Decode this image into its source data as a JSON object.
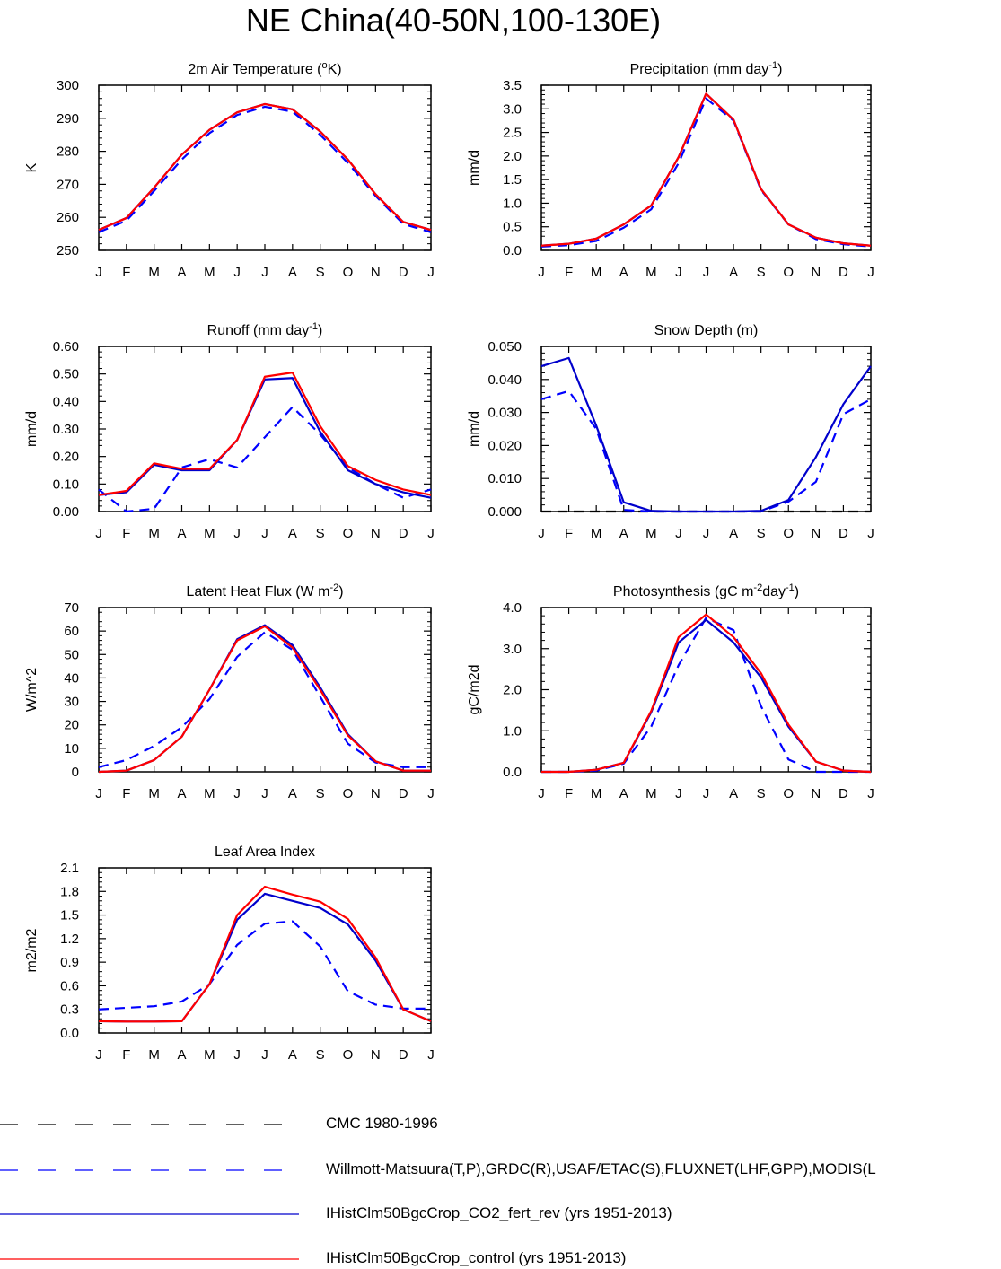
{
  "figure": {
    "title": "NE China(40-50N,100-130E)"
  },
  "colors": {
    "cmc": "#000000",
    "obs": "#0000ff",
    "co2_fert_rev": "#0000cc",
    "control": "#ff0000"
  },
  "legend": [
    {
      "label": "CMC 1980-1996",
      "color": "#000000",
      "style": "dashed"
    },
    {
      "label": "Willmott-Matsuura(T,P),GRDC(R),USAF/ETAC(S),FLUXNET(LHF,GPP),MODIS(L",
      "color": "#0000ff",
      "style": "dashed"
    },
    {
      "label": "IHistClm50BgcCrop_CO2_fert_rev (yrs 1951-2013)",
      "color": "#0000cc",
      "style": "solid"
    },
    {
      "label": "IHistClm50BgcCrop_control (yrs 1951-2013)",
      "color": "#ff0000",
      "style": "solid"
    }
  ],
  "chart_data": [
    {
      "type": "line",
      "title": "2m Air Temperature (",
      "title_sup": "o",
      "title_after": "K)",
      "ylabel": "K",
      "categories": [
        "J",
        "F",
        "M",
        "A",
        "M",
        "J",
        "J",
        "A",
        "S",
        "O",
        "N",
        "D",
        "J"
      ],
      "ylim": [
        250,
        300
      ],
      "yticks": [
        "250",
        "260",
        "270",
        "280",
        "290",
        "300"
      ],
      "ytick_values": [
        250,
        260,
        270,
        280,
        290,
        300
      ],
      "series": [
        {
          "key": "obs",
          "values": [
            255.5,
            259.0,
            268.0,
            277.5,
            285.5,
            291.0,
            293.5,
            292.0,
            285.0,
            276.5,
            266.5,
            258.0,
            255.5
          ]
        },
        {
          "key": "co2_fert_rev",
          "values": [
            256.2,
            259.8,
            269.0,
            279.0,
            286.5,
            291.8,
            294.3,
            292.7,
            286.0,
            277.5,
            267.0,
            258.6,
            256.2
          ]
        },
        {
          "key": "control",
          "values": [
            256.2,
            259.8,
            269.0,
            279.0,
            286.5,
            291.8,
            294.3,
            292.7,
            286.0,
            277.5,
            267.0,
            258.6,
            256.2
          ]
        }
      ]
    },
    {
      "type": "line",
      "title": "Precipitation (mm day",
      "title_sup": "-1",
      "title_after": ")",
      "ylabel": "mm/d",
      "categories": [
        "J",
        "F",
        "M",
        "A",
        "M",
        "J",
        "J",
        "A",
        "S",
        "O",
        "N",
        "D",
        "J"
      ],
      "ylim": [
        0,
        3.5
      ],
      "yticks": [
        "0.0",
        "0.5",
        "1.0",
        "1.5",
        "2.0",
        "2.5",
        "3.0",
        "3.5"
      ],
      "ytick_values": [
        0,
        0.5,
        1.0,
        1.5,
        2.0,
        2.5,
        3.0,
        3.5
      ],
      "series": [
        {
          "key": "obs",
          "values": [
            0.08,
            0.11,
            0.2,
            0.48,
            0.87,
            1.85,
            3.22,
            2.75,
            1.28,
            0.55,
            0.24,
            0.13,
            0.08
          ]
        },
        {
          "key": "co2_fert_rev",
          "values": [
            0.1,
            0.14,
            0.25,
            0.55,
            0.95,
            1.98,
            3.32,
            2.77,
            1.3,
            0.55,
            0.27,
            0.15,
            0.1
          ]
        },
        {
          "key": "control",
          "values": [
            0.1,
            0.14,
            0.25,
            0.55,
            0.95,
            1.98,
            3.32,
            2.77,
            1.3,
            0.55,
            0.27,
            0.15,
            0.1
          ]
        }
      ]
    },
    {
      "type": "line",
      "title": "Runoff (mm day",
      "title_sup": "-1",
      "title_after": ")",
      "ylabel": "mm/d",
      "categories": [
        "J",
        "F",
        "M",
        "A",
        "M",
        "J",
        "J",
        "A",
        "S",
        "O",
        "N",
        "D",
        "J"
      ],
      "ylim": [
        0,
        0.6
      ],
      "yticks": [
        "0.00",
        "0.10",
        "0.20",
        "0.30",
        "0.40",
        "0.50",
        "0.60"
      ],
      "ytick_values": [
        0,
        0.1,
        0.2,
        0.3,
        0.4,
        0.5,
        0.6
      ],
      "series": [
        {
          "key": "obs",
          "values": [
            0.08,
            0.0,
            0.01,
            0.16,
            0.19,
            0.16,
            0.27,
            0.38,
            0.28,
            0.16,
            0.1,
            0.05,
            0.08
          ]
        },
        {
          "key": "co2_fert_rev",
          "values": [
            0.06,
            0.07,
            0.17,
            0.15,
            0.15,
            0.26,
            0.48,
            0.485,
            0.29,
            0.15,
            0.1,
            0.07,
            0.05
          ]
        },
        {
          "key": "control",
          "values": [
            0.06,
            0.075,
            0.175,
            0.155,
            0.155,
            0.26,
            0.49,
            0.505,
            0.31,
            0.165,
            0.115,
            0.08,
            0.06
          ]
        }
      ]
    },
    {
      "type": "line",
      "title": "Snow Depth (m)",
      "title_sup": "",
      "title_after": "",
      "ylabel": "mm/d",
      "categories": [
        "J",
        "F",
        "M",
        "A",
        "M",
        "J",
        "J",
        "A",
        "S",
        "O",
        "N",
        "D",
        "J"
      ],
      "ylim": [
        0,
        0.05
      ],
      "yticks": [
        "0.000",
        "0.010",
        "0.020",
        "0.030",
        "0.040",
        "0.050"
      ],
      "ytick_values": [
        0,
        0.01,
        0.02,
        0.03,
        0.04,
        0.05
      ],
      "series": [
        {
          "key": "cmc",
          "values": [
            0,
            0,
            0,
            0,
            0,
            0,
            0,
            0,
            0,
            0,
            0,
            0,
            0
          ]
        },
        {
          "key": "obs",
          "values": [
            0.034,
            0.0365,
            0.025,
            0.0005,
            0,
            0,
            0,
            0,
            0,
            0.003,
            0.009,
            0.0295,
            0.034
          ]
        },
        {
          "key": "co2_fert_rev",
          "values": [
            0.044,
            0.0465,
            0.026,
            0.0028,
            0.0002,
            0,
            0,
            0,
            0.0002,
            0.0035,
            0.0165,
            0.0325,
            0.044
          ]
        }
      ]
    },
    {
      "type": "line",
      "title": "Latent Heat Flux (W m",
      "title_sup": "-2",
      "title_after": ")",
      "ylabel": "W/m^2",
      "categories": [
        "J",
        "F",
        "M",
        "A",
        "M",
        "J",
        "J",
        "A",
        "S",
        "O",
        "N",
        "D",
        "J"
      ],
      "ylim": [
        0,
        70
      ],
      "yticks": [
        "0",
        "10",
        "20",
        "30",
        "40",
        "50",
        "60",
        "70"
      ],
      "ytick_values": [
        0,
        10,
        20,
        30,
        40,
        50,
        60,
        70
      ],
      "series": [
        {
          "key": "obs",
          "values": [
            2,
            5,
            11,
            19,
            31,
            49,
            59.5,
            52,
            32,
            12,
            4,
            2,
            2
          ]
        },
        {
          "key": "co2_fert_rev",
          "values": [
            0,
            0.5,
            5,
            15,
            35,
            56.5,
            62.5,
            54,
            36,
            16,
            4.5,
            0.5,
            0.5
          ]
        },
        {
          "key": "control",
          "values": [
            0,
            0.5,
            5,
            15,
            35,
            56,
            62,
            53,
            35,
            15.5,
            4.5,
            0.5,
            0.5
          ]
        }
      ]
    },
    {
      "type": "line",
      "title": "Photosynthesis (gC m",
      "title_sup": "-2",
      "title_after": "day",
      "title_sup2": "-1",
      "title_after2": ")",
      "ylabel": "gC/m2d",
      "categories": [
        "J",
        "F",
        "M",
        "A",
        "M",
        "J",
        "J",
        "A",
        "S",
        "O",
        "N",
        "D",
        "J"
      ],
      "ylim": [
        0,
        4.0
      ],
      "yticks": [
        "0.0",
        "1.0",
        "2.0",
        "3.0",
        "4.0"
      ],
      "ytick_values": [
        0,
        1,
        2,
        3,
        4
      ],
      "series": [
        {
          "key": "obs",
          "values": [
            0.0,
            0.0,
            0.03,
            0.2,
            1.1,
            2.6,
            3.75,
            3.45,
            1.6,
            0.3,
            0.0,
            0.0,
            0.0
          ]
        },
        {
          "key": "co2_fert_rev",
          "values": [
            0.0,
            0.0,
            0.05,
            0.22,
            1.45,
            3.15,
            3.7,
            3.15,
            2.3,
            1.1,
            0.25,
            0.03,
            0.0
          ]
        },
        {
          "key": "control",
          "values": [
            0.0,
            0.0,
            0.05,
            0.22,
            1.48,
            3.28,
            3.83,
            3.28,
            2.4,
            1.15,
            0.25,
            0.03,
            0.0
          ]
        }
      ]
    },
    {
      "type": "line",
      "title": "Leaf Area Index",
      "title_sup": "",
      "title_after": "",
      "ylabel": "m2/m2",
      "categories": [
        "J",
        "F",
        "M",
        "A",
        "M",
        "J",
        "J",
        "A",
        "S",
        "O",
        "N",
        "D",
        "J"
      ],
      "ylim": [
        0,
        2.1
      ],
      "yticks": [
        "0.0",
        "0.3",
        "0.6",
        "0.9",
        "1.2",
        "1.5",
        "1.8",
        "2.1"
      ],
      "ytick_values": [
        0,
        0.3,
        0.6,
        0.9,
        1.2,
        1.5,
        1.8,
        2.1
      ],
      "series": [
        {
          "key": "obs",
          "values": [
            0.3,
            0.32,
            0.34,
            0.4,
            0.62,
            1.12,
            1.39,
            1.42,
            1.1,
            0.53,
            0.36,
            0.31,
            0.31
          ]
        },
        {
          "key": "co2_fert_rev",
          "values": [
            0.15,
            0.145,
            0.145,
            0.15,
            0.62,
            1.44,
            1.77,
            1.68,
            1.59,
            1.38,
            0.92,
            0.3,
            0.15
          ]
        },
        {
          "key": "control",
          "values": [
            0.15,
            0.145,
            0.145,
            0.15,
            0.62,
            1.5,
            1.86,
            1.76,
            1.67,
            1.45,
            0.96,
            0.3,
            0.15
          ]
        }
      ]
    }
  ]
}
